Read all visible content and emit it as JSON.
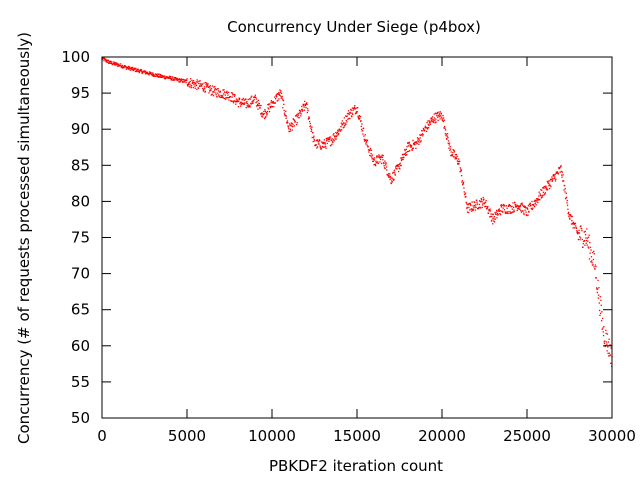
{
  "chart_data": {
    "type": "scatter",
    "title": "Concurrency Under Siege (p4box)",
    "xlabel": "PBKDF2 iteration count",
    "ylabel": "Concurrency (# of requests processed simultaneously)",
    "xlim": [
      0,
      30000
    ],
    "ylim": [
      50,
      100
    ],
    "xticks": [
      0,
      5000,
      10000,
      15000,
      20000,
      25000,
      30000
    ],
    "xtick_labels": [
      "0",
      "5000",
      "10000",
      "15000",
      "20000",
      "25000",
      "30000"
    ],
    "yticks": [
      50,
      55,
      60,
      65,
      70,
      75,
      80,
      85,
      90,
      95,
      100
    ],
    "ytick_labels": [
      "50",
      "55",
      "60",
      "65",
      "70",
      "75",
      "80",
      "85",
      "90",
      "95",
      "100"
    ],
    "grid": false,
    "legend": "none",
    "marker_color": "#ff0000",
    "series": [
      {
        "x": [
          0,
          500,
          1000,
          1500,
          2000,
          2500,
          3000,
          3500,
          4000,
          4500,
          5000,
          5500,
          6000,
          6500,
          7000,
          7500,
          8000,
          8500,
          9000,
          9500,
          10000,
          10500,
          11000,
          11500,
          12000,
          12500,
          13000,
          13500,
          14000,
          14500,
          15000,
          15500,
          16000,
          16500,
          17000,
          17500,
          18000,
          18500,
          19000,
          19500,
          20000,
          20500,
          21000,
          21500,
          22000,
          22500,
          23000,
          23500,
          24000,
          24500,
          25000,
          25500,
          26000,
          26500,
          27000,
          27500,
          28000,
          28500,
          29000,
          29500,
          30000
        ],
        "y": [
          99.8,
          99.2,
          98.9,
          98.5,
          98.2,
          97.9,
          97.6,
          97.3,
          97.1,
          96.8,
          96.6,
          96.2,
          95.9,
          95.3,
          95.0,
          94.7,
          93.8,
          93.5,
          94.2,
          92.0,
          93.5,
          95.0,
          90.0,
          91.5,
          93.5,
          88.0,
          87.8,
          88.5,
          90.0,
          92.0,
          93.0,
          88.5,
          85.5,
          86.0,
          83.0,
          85.0,
          87.5,
          88.0,
          90.0,
          91.5,
          92.0,
          87.0,
          85.5,
          79.0,
          79.5,
          80.0,
          77.5,
          79.0,
          79.0,
          79.5,
          78.5,
          80.0,
          81.5,
          83.0,
          84.5,
          78.0,
          75.5,
          75.0,
          71.0,
          62.0,
          58.5
        ]
      }
    ]
  }
}
